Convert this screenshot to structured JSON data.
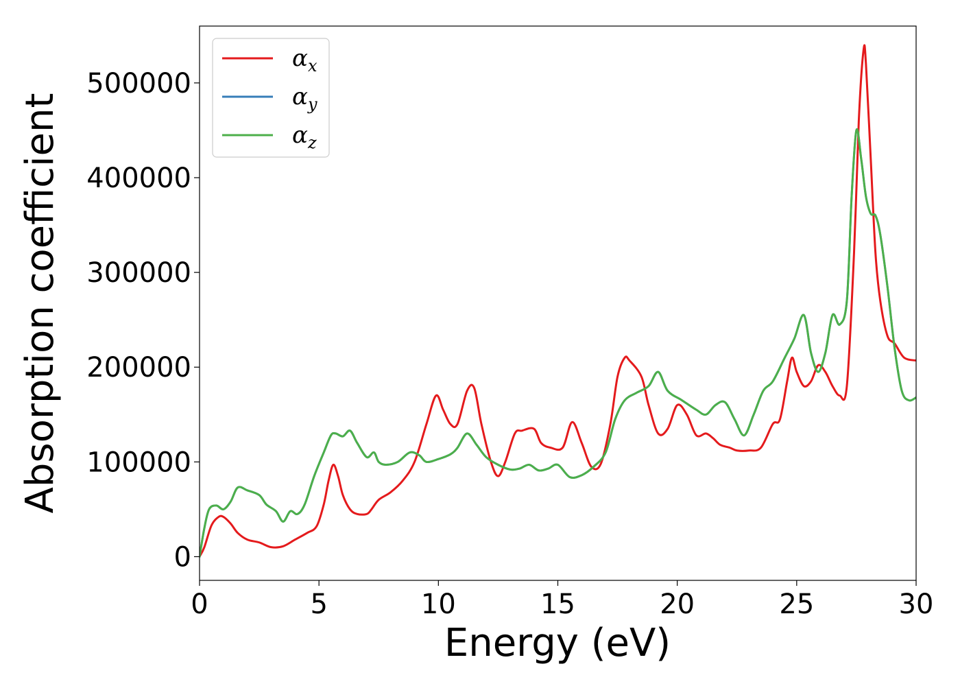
{
  "chart_data": {
    "type": "line",
    "xlabel": "Energy (eV)",
    "ylabel": "Absorption coefficient",
    "xlim": [
      0,
      30
    ],
    "ylim": [
      -25000,
      560000
    ],
    "x_ticks": [
      "0",
      "5",
      "10",
      "15",
      "20",
      "25",
      "30"
    ],
    "y_ticks": [
      "0",
      "100000",
      "200000",
      "300000",
      "400000",
      "500000"
    ],
    "grid": false,
    "legend_position": "top-left",
    "series": [
      {
        "name": "α_x",
        "name_base": "α",
        "name_sub": "x",
        "color": "#e41a1c",
        "x": [
          0,
          0.2,
          0.5,
          0.8,
          1.0,
          1.3,
          1.6,
          2.0,
          2.5,
          3.0,
          3.5,
          4.0,
          4.5,
          4.9,
          5.2,
          5.4,
          5.6,
          5.8,
          6.0,
          6.3,
          6.6,
          7.0,
          7.2,
          7.5,
          8.0,
          8.5,
          9.0,
          9.5,
          9.9,
          10.2,
          10.5,
          10.8,
          11.2,
          11.5,
          11.8,
          12.2,
          12.5,
          12.8,
          13.2,
          13.5,
          14.0,
          14.3,
          14.7,
          15.2,
          15.6,
          16.0,
          16.4,
          16.8,
          17.2,
          17.5,
          17.8,
          18.0,
          18.5,
          18.8,
          19.2,
          19.6,
          20.0,
          20.4,
          20.8,
          21.2,
          21.5,
          21.8,
          22.2,
          22.5,
          23.0,
          23.5,
          24.0,
          24.3,
          24.6,
          24.8,
          25.0,
          25.3,
          25.6,
          25.9,
          26.2,
          26.5,
          26.8,
          27.1,
          27.4,
          27.6,
          27.8,
          27.9,
          28.1,
          28.3,
          28.5,
          28.8,
          29.1,
          29.5,
          30.0
        ],
        "y": [
          0,
          10000,
          33000,
          42000,
          42000,
          35000,
          25000,
          18000,
          15000,
          10000,
          11000,
          18000,
          25000,
          32000,
          55000,
          80000,
          97000,
          85000,
          65000,
          50000,
          45000,
          45000,
          50000,
          60000,
          68000,
          80000,
          100000,
          140000,
          170000,
          155000,
          140000,
          140000,
          175000,
          178000,
          140000,
          100000,
          85000,
          100000,
          130000,
          133000,
          135000,
          120000,
          115000,
          115000,
          142000,
          120000,
          95000,
          98000,
          140000,
          190000,
          210000,
          207000,
          190000,
          160000,
          130000,
          135000,
          160000,
          150000,
          128000,
          130000,
          125000,
          118000,
          115000,
          112000,
          112000,
          115000,
          140000,
          145000,
          185000,
          210000,
          195000,
          180000,
          185000,
          202000,
          195000,
          180000,
          170000,
          180000,
          320000,
          460000,
          535000,
          520000,
          420000,
          320000,
          270000,
          233000,
          225000,
          210000,
          207000
        ]
      },
      {
        "name": "α_y",
        "name_base": "α",
        "name_sub": "y",
        "color": "#377eb8",
        "x": [
          0,
          0.2,
          0.4,
          0.7,
          1.0,
          1.3,
          1.6,
          2.0,
          2.5,
          2.8,
          3.2,
          3.5,
          3.8,
          4.1,
          4.4,
          4.8,
          5.2,
          5.5,
          5.7,
          6.0,
          6.3,
          6.6,
          7.0,
          7.3,
          7.5,
          7.8,
          8.3,
          8.8,
          9.2,
          9.5,
          10.0,
          10.5,
          10.8,
          11.2,
          11.6,
          12.0,
          12.5,
          13.0,
          13.4,
          13.8,
          14.2,
          14.6,
          15.0,
          15.5,
          16.0,
          16.5,
          17.0,
          17.4,
          17.8,
          18.3,
          18.8,
          19.2,
          19.6,
          20.2,
          20.8,
          21.2,
          21.6,
          22.0,
          22.4,
          22.8,
          23.2,
          23.6,
          24.0,
          24.5,
          24.9,
          25.3,
          25.6,
          25.9,
          26.2,
          26.5,
          26.8,
          27.1,
          27.3,
          27.5,
          27.7,
          27.9,
          28.1,
          28.3,
          28.5,
          28.8,
          29.1,
          29.4,
          29.7,
          30.0
        ],
        "y": [
          0,
          30000,
          50000,
          54000,
          50000,
          58000,
          73000,
          70000,
          65000,
          55000,
          48000,
          37000,
          48000,
          45000,
          55000,
          85000,
          110000,
          128000,
          130000,
          127000,
          133000,
          120000,
          105000,
          110000,
          100000,
          97000,
          100000,
          110000,
          107000,
          100000,
          103000,
          108000,
          115000,
          130000,
          118000,
          105000,
          97000,
          92000,
          93000,
          97000,
          91000,
          93000,
          97000,
          84000,
          86000,
          95000,
          110000,
          145000,
          165000,
          173000,
          180000,
          195000,
          175000,
          165000,
          155000,
          150000,
          160000,
          163000,
          145000,
          128000,
          150000,
          175000,
          185000,
          210000,
          230000,
          255000,
          215000,
          195000,
          215000,
          255000,
          245000,
          270000,
          380000,
          450000,
          420000,
          380000,
          362000,
          360000,
          340000,
          285000,
          220000,
          175000,
          165000,
          168000
        ]
      },
      {
        "name": "α_z",
        "name_base": "α",
        "name_sub": "z",
        "color": "#4daf4a",
        "x": [
          0,
          0.2,
          0.4,
          0.7,
          1.0,
          1.3,
          1.6,
          2.0,
          2.5,
          2.8,
          3.2,
          3.5,
          3.8,
          4.1,
          4.4,
          4.8,
          5.2,
          5.5,
          5.7,
          6.0,
          6.3,
          6.6,
          7.0,
          7.3,
          7.5,
          7.8,
          8.3,
          8.8,
          9.2,
          9.5,
          10.0,
          10.5,
          10.8,
          11.2,
          11.6,
          12.0,
          12.5,
          13.0,
          13.4,
          13.8,
          14.2,
          14.6,
          15.0,
          15.5,
          16.0,
          16.5,
          17.0,
          17.4,
          17.8,
          18.3,
          18.8,
          19.2,
          19.6,
          20.2,
          20.8,
          21.2,
          21.6,
          22.0,
          22.4,
          22.8,
          23.2,
          23.6,
          24.0,
          24.5,
          24.9,
          25.3,
          25.6,
          25.9,
          26.2,
          26.5,
          26.8,
          27.1,
          27.3,
          27.5,
          27.7,
          27.9,
          28.1,
          28.3,
          28.5,
          28.8,
          29.1,
          29.4,
          29.7,
          30.0
        ],
        "y": [
          0,
          30000,
          50000,
          54000,
          50000,
          58000,
          73000,
          70000,
          65000,
          55000,
          48000,
          37000,
          48000,
          45000,
          55000,
          85000,
          110000,
          128000,
          130000,
          127000,
          133000,
          120000,
          105000,
          110000,
          100000,
          97000,
          100000,
          110000,
          107000,
          100000,
          103000,
          108000,
          115000,
          130000,
          118000,
          105000,
          97000,
          92000,
          93000,
          97000,
          91000,
          93000,
          97000,
          84000,
          86000,
          95000,
          110000,
          145000,
          165000,
          173000,
          180000,
          195000,
          175000,
          165000,
          155000,
          150000,
          160000,
          163000,
          145000,
          128000,
          150000,
          175000,
          185000,
          210000,
          230000,
          255000,
          215000,
          195000,
          215000,
          255000,
          245000,
          270000,
          380000,
          450000,
          420000,
          380000,
          362000,
          360000,
          340000,
          285000,
          220000,
          175000,
          165000,
          168000
        ]
      }
    ]
  }
}
